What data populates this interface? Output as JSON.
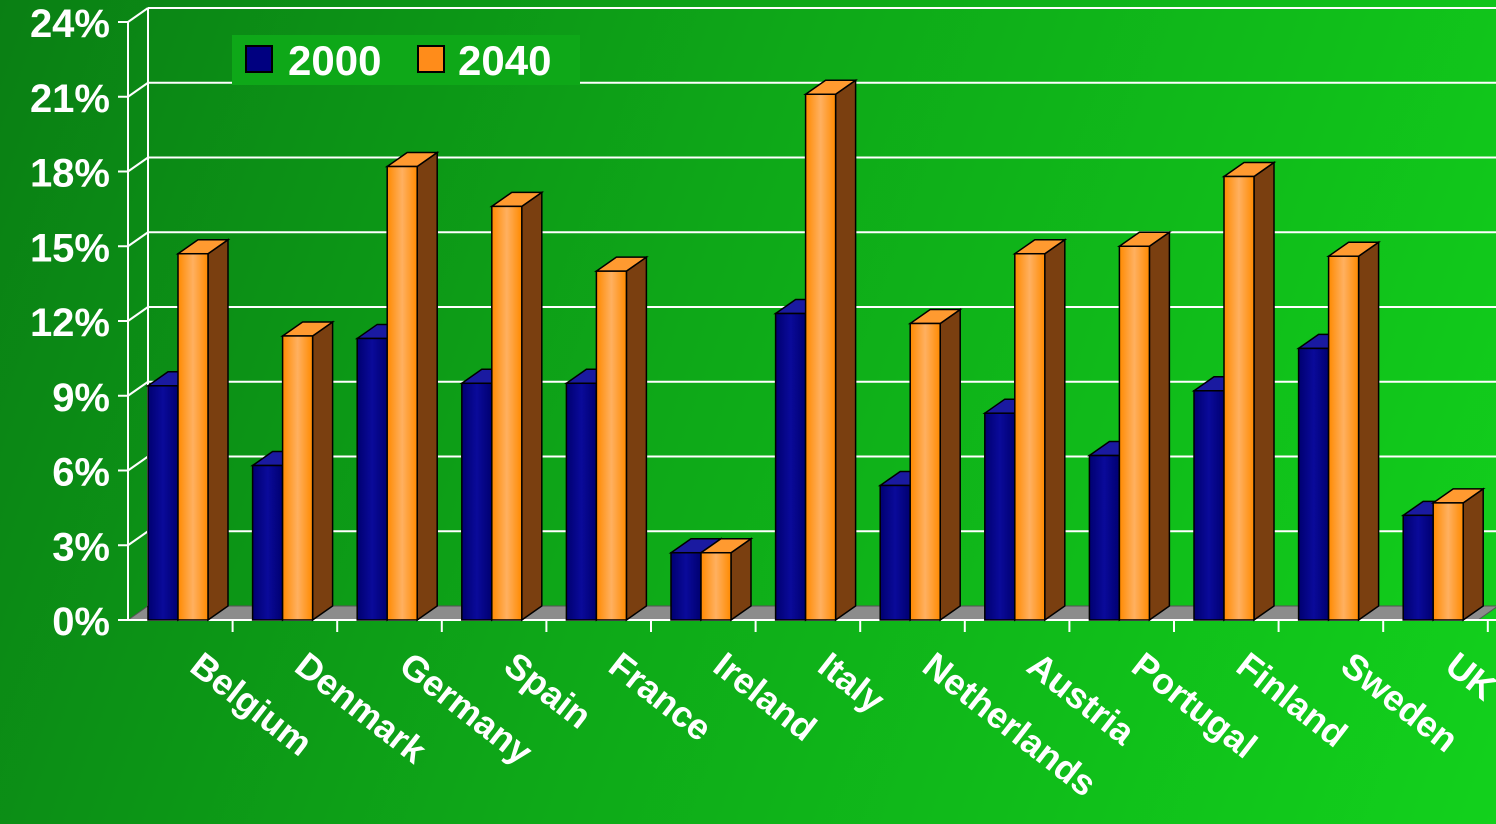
{
  "chart_data": {
    "type": "bar",
    "title": "",
    "xlabel": "",
    "ylabel": "",
    "categories": [
      "Belgium",
      "Denmark",
      "Germany",
      "Spain",
      "France",
      "Ireland",
      "Italy",
      "Netherlands",
      "Austria",
      "Portugal",
      "Finland",
      "Sweden",
      "UK"
    ],
    "series": [
      {
        "name": "2000",
        "color": "#000080",
        "values": [
          9.4,
          6.2,
          11.3,
          9.5,
          9.5,
          2.7,
          12.3,
          5.4,
          8.3,
          6.6,
          9.2,
          10.9,
          4.2
        ]
      },
      {
        "name": "2040",
        "color": "#ff8c1a",
        "values": [
          14.7,
          11.4,
          18.2,
          16.6,
          14.0,
          2.7,
          21.1,
          11.9,
          14.7,
          15.0,
          17.8,
          14.6,
          4.7
        ]
      }
    ],
    "ylim": [
      0,
      24
    ],
    "yticks": [
      "0%",
      "3%",
      "6%",
      "9%",
      "12%",
      "15%",
      "18%",
      "21%",
      "24%"
    ],
    "grid": true,
    "legend": "top-left",
    "style": "3d-columns"
  }
}
